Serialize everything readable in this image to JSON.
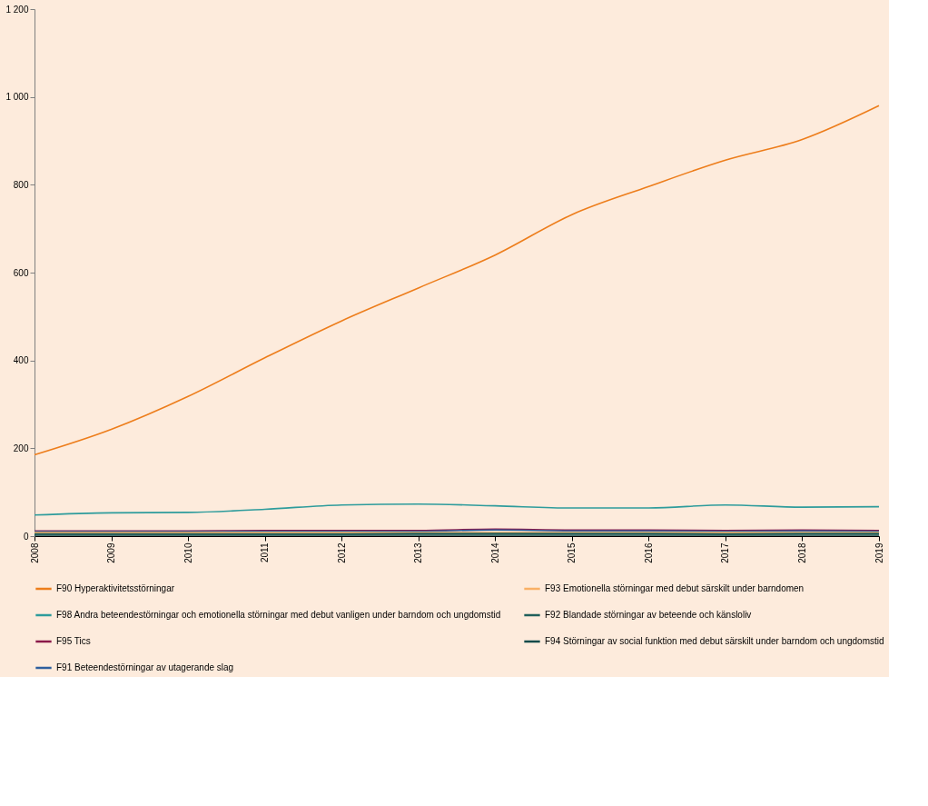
{
  "chart_data": {
    "type": "line",
    "x": [
      2008,
      2009,
      2010,
      2011,
      2012,
      2013,
      2014,
      2015,
      2016,
      2017,
      2018,
      2019
    ],
    "xlim": [
      2008,
      2019
    ],
    "xticks": [
      2008,
      2009,
      2010,
      2011,
      2012,
      2013,
      2014,
      2015,
      2016,
      2017,
      2018,
      2019
    ],
    "ylim": [
      0,
      1200
    ],
    "yticks": [
      0,
      200,
      400,
      600,
      800,
      {
        "value": 1000,
        "label": "1 000"
      },
      {
        "value": 1200,
        "label": "1 200"
      }
    ],
    "grid": false,
    "legend": "bottom",
    "marker": "none",
    "line_style": "solid",
    "series": [
      {
        "name": "F90 Hyperaktivitetsstörningar",
        "color": "#ed7d1b",
        "values": [
          185,
          243,
          318,
          406,
          490,
          565,
          640,
          732,
          796,
          856,
          903,
          980
        ]
      },
      {
        "name": "F93 Emotionella störningar med debut särskilt under barndomen",
        "color": "#f9b065",
        "values": [
          8,
          8,
          8,
          8,
          8,
          8,
          8,
          8,
          8,
          8,
          8,
          8
        ]
      },
      {
        "name": "F98 Andra beteendestörningar och emotionella störningar med debut vanligen under barndom och ungdomstid",
        "color": "#2e9c9c",
        "values": [
          48,
          53,
          54,
          61,
          71,
          73,
          69,
          64,
          64,
          71,
          66,
          67
        ]
      },
      {
        "name": "F92 Blandade störningar av beteende och känsloliv",
        "color": "#1f5f5b",
        "values": [
          5,
          5,
          5,
          5,
          5,
          6,
          6,
          6,
          6,
          5,
          6,
          6
        ]
      },
      {
        "name": "F95 Tics",
        "color": "#8b1a4a",
        "values": [
          12,
          12,
          12,
          13,
          13,
          13,
          16,
          14,
          14,
          13,
          14,
          13
        ]
      },
      {
        "name": "F94 Störningar av social funktion med debut särskilt under barndom och ungdomstid",
        "color": "#0f4a4a",
        "values": [
          2,
          2,
          2,
          2,
          2,
          2,
          2,
          2,
          2,
          2,
          2,
          2
        ]
      },
      {
        "name": "F91 Beteendestörningar av utagerande slag",
        "color": "#2e5f9e",
        "values": [
          10,
          10,
          10,
          11,
          11,
          11,
          14,
          12,
          12,
          11,
          12,
          11
        ]
      }
    ]
  }
}
